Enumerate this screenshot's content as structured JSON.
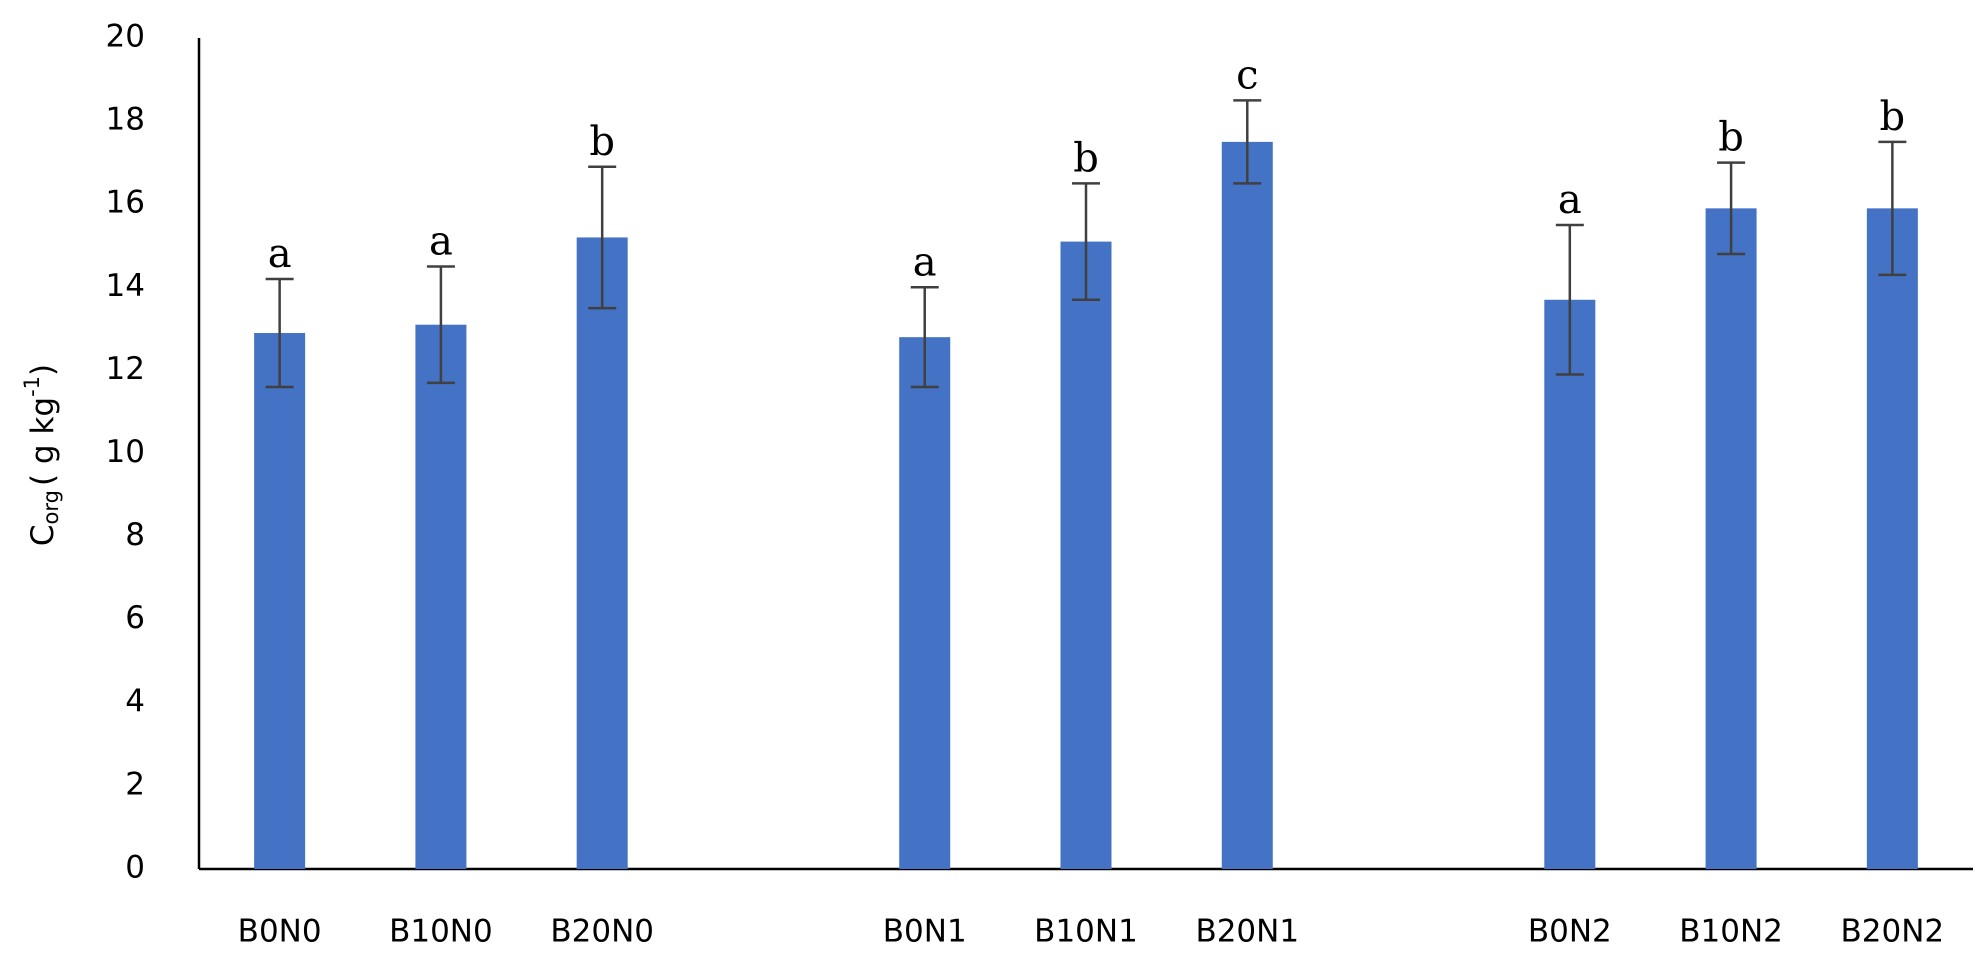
{
  "chart_data": {
    "type": "bar",
    "y_label": {
      "main": "C",
      "sub": "org",
      "unit": "( g kg",
      "sup": "-1",
      "close": ")"
    },
    "categories": [
      "B0N0",
      "B10N0",
      "B20N0",
      null,
      "B0N1",
      "B10N1",
      "B20N1",
      null,
      "B0N2",
      "B10N2",
      "B20N2"
    ],
    "values": [
      12.9,
      13.1,
      15.2,
      null,
      12.8,
      15.1,
      17.5,
      null,
      13.7,
      15.9,
      15.9
    ],
    "errors": [
      1.3,
      1.4,
      1.7,
      null,
      1.2,
      1.4,
      1.0,
      null,
      1.8,
      1.1,
      1.6
    ],
    "annotations": [
      "a",
      "a",
      "b",
      null,
      "a",
      "b",
      "c",
      null,
      "a",
      "b",
      "b"
    ],
    "color": "#4472c4",
    "error_color": "#404040",
    "ylim": [
      0,
      20
    ],
    "yticks": [
      0,
      2,
      4,
      6,
      8,
      10,
      12,
      14,
      16,
      18,
      20
    ],
    "grid": false
  }
}
